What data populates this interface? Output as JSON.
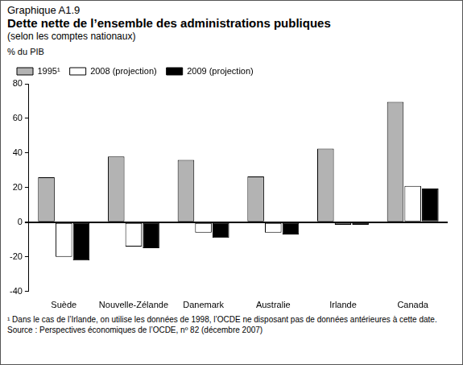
{
  "chart_data": {
    "type": "bar",
    "figure_label": "Graphique A1.9",
    "title": "Dette nette de l’ensemble des administrations publiques",
    "subtitle": "(selon les comptes nationaux)",
    "y_label": "% du PIB",
    "categories": [
      "Suède",
      "Nouvelle-Zélande",
      "Danemark",
      "Australie",
      "Irlande",
      "Canada"
    ],
    "series": [
      {
        "name": "1995¹",
        "color": "#b3b3b3",
        "values": [
          26,
          38,
          36,
          26.5,
          42.5,
          69.5
        ]
      },
      {
        "name": "2008 (projection)",
        "color": "#ffffff",
        "values": [
          -20,
          -14,
          -6,
          -6,
          -1.5,
          21
        ]
      },
      {
        "name": "2009 (projection)",
        "color": "#000000",
        "values": [
          -22,
          -15,
          -9,
          -7,
          -1.5,
          19.5
        ]
      }
    ],
    "ylim": [
      -40,
      80
    ],
    "yticks": [
      -40,
      -20,
      0,
      20,
      40,
      60,
      80
    ],
    "grid": false,
    "legend": "top-left",
    "footnote": "¹ Dans le cas de l’Irlande, on utilise les données de 1998, l’OCDE ne disposant pas de données antérieures à cette date.",
    "source": "Source : Perspectives économiques de l’OCDE, nº 82 (décembre 2007)"
  }
}
